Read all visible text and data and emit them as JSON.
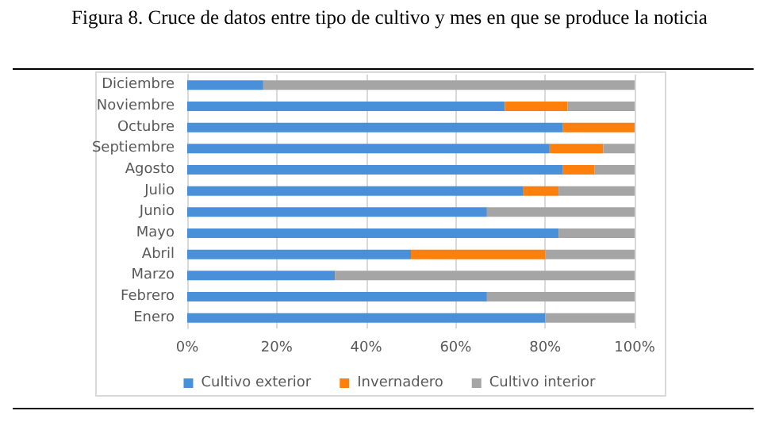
{
  "chart_data": {
    "type": "bar",
    "title": "Figura 8. Cruce de datos entre tipo de cultivo y mes en que se produce la noticia",
    "orientation": "horizontal",
    "stacked": true,
    "categories": [
      "Diciembre",
      "Noviembre",
      "Octubre",
      "Septiembre",
      "Agosto",
      "Julio",
      "Junio",
      "Mayo",
      "Abril",
      "Marzo",
      "Febrero",
      "Enero"
    ],
    "series": [
      {
        "name": "Cultivo exterior",
        "color": "#4a90d9",
        "values": [
          17,
          71,
          84,
          81,
          84,
          75,
          67,
          83,
          50,
          33,
          67,
          80
        ]
      },
      {
        "name": "Invernadero",
        "color": "#fd7f0c",
        "values": [
          0,
          14,
          16,
          12,
          7,
          8,
          0,
          0,
          30,
          0,
          0,
          0
        ]
      },
      {
        "name": "Cultivo interior",
        "color": "#a5a5a5",
        "values": [
          83,
          15,
          0,
          7,
          9,
          17,
          33,
          17,
          20,
          67,
          33,
          20
        ]
      }
    ],
    "xlim": [
      0,
      100
    ],
    "xticks": [
      {
        "value": 0,
        "label": "0%"
      },
      {
        "value": 20,
        "label": "20%"
      },
      {
        "value": 40,
        "label": "40%"
      },
      {
        "value": 60,
        "label": "60%"
      },
      {
        "value": 80,
        "label": "80%"
      },
      {
        "value": 100,
        "label": "100%"
      }
    ],
    "grid": "x",
    "legend": "bottom"
  }
}
